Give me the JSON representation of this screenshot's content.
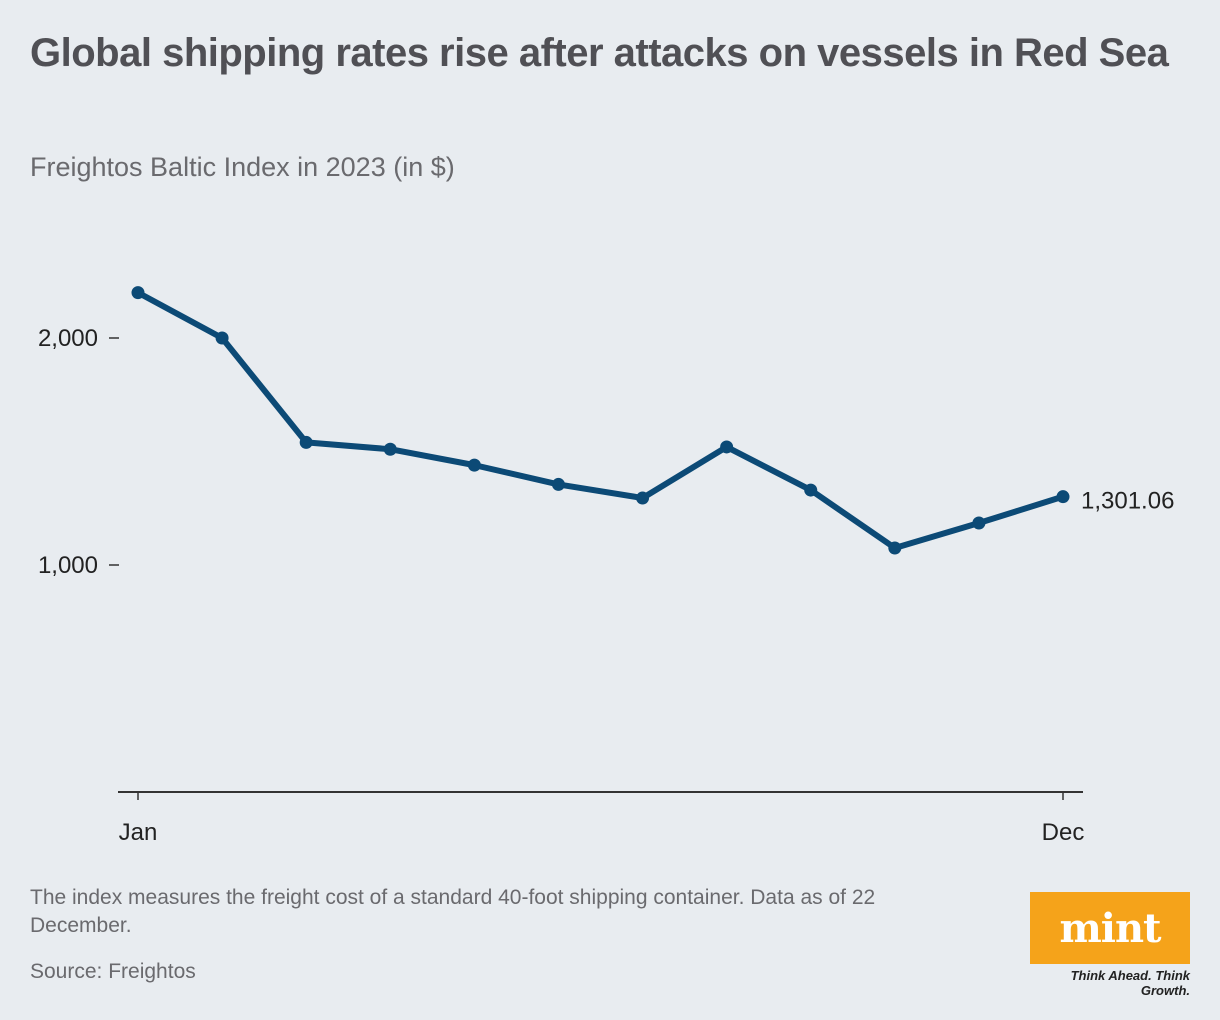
{
  "title": "Global shipping rates rise after attacks on vessels in Red Sea",
  "subtitle": "Freightos Baltic Index in 2023 (in $)",
  "footnote": "The index measures the freight cost of a standard 40-foot shipping container. Data as of 22 December.",
  "source": "Source: Freightos",
  "logo": {
    "word": "mint",
    "tagline": "Think Ahead. Think Growth."
  },
  "colors": {
    "line": "#0c4a76",
    "background": "#e8ecf0",
    "text": "#505055",
    "logo": "#f5a31a"
  },
  "chart_data": {
    "type": "line",
    "x_tick_labels": [
      "Jan",
      "Dec"
    ],
    "values": [
      2200,
      2000,
      1540,
      1510,
      1440,
      1355,
      1295,
      1520,
      1330,
      1075,
      1185,
      1301.06
    ],
    "y_ticks": [
      1000,
      2000
    ],
    "y_tick_labels": [
      "1,000",
      "2,000"
    ],
    "ylim": [
      0,
      2300
    ],
    "end_label": "1,301.06",
    "grid": false
  }
}
